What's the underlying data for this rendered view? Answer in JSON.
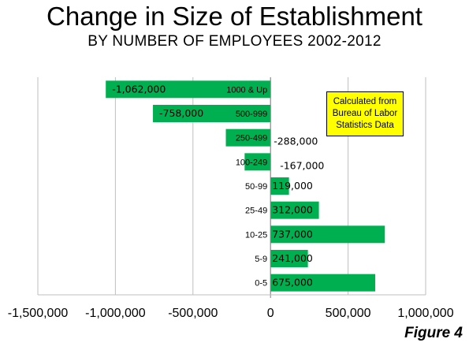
{
  "title": "Change in Size of Establishment",
  "subtitle": "BY NUMBER OF EMPLOYEES 2002-2012",
  "note": {
    "lines": [
      "Calculated from",
      "Bureau of Labor",
      "Statistics Data"
    ]
  },
  "figure_label": "Figure 4",
  "colors": {
    "bar": "#00b050",
    "note_bg": "#ffff00",
    "gridline": "#bfbfbf"
  },
  "chart_data": {
    "type": "bar",
    "orientation": "horizontal",
    "categories": [
      "1000 & Up",
      "500-999",
      "250-499",
      "100-249",
      "50-99",
      "25-49",
      "10-25",
      "5-9",
      "0-5"
    ],
    "values": [
      -1062000,
      -758000,
      -288000,
      -167000,
      119000,
      312000,
      737000,
      241000,
      675000
    ],
    "data_labels": [
      "-1,062,000",
      "-758,000",
      "-288,000",
      "-167,000",
      "119,000",
      "312,000",
      "737,000",
      "241,000",
      "675,000"
    ],
    "xlim": [
      -1500000,
      1000000
    ],
    "x_ticks": [
      -1500000,
      -1000000,
      -500000,
      0,
      500000,
      1000000
    ],
    "x_tick_labels": [
      "-1,500,000",
      "-1,000,000",
      "-500,000",
      "0",
      "500,000",
      "1,000,000"
    ],
    "grid": true
  }
}
